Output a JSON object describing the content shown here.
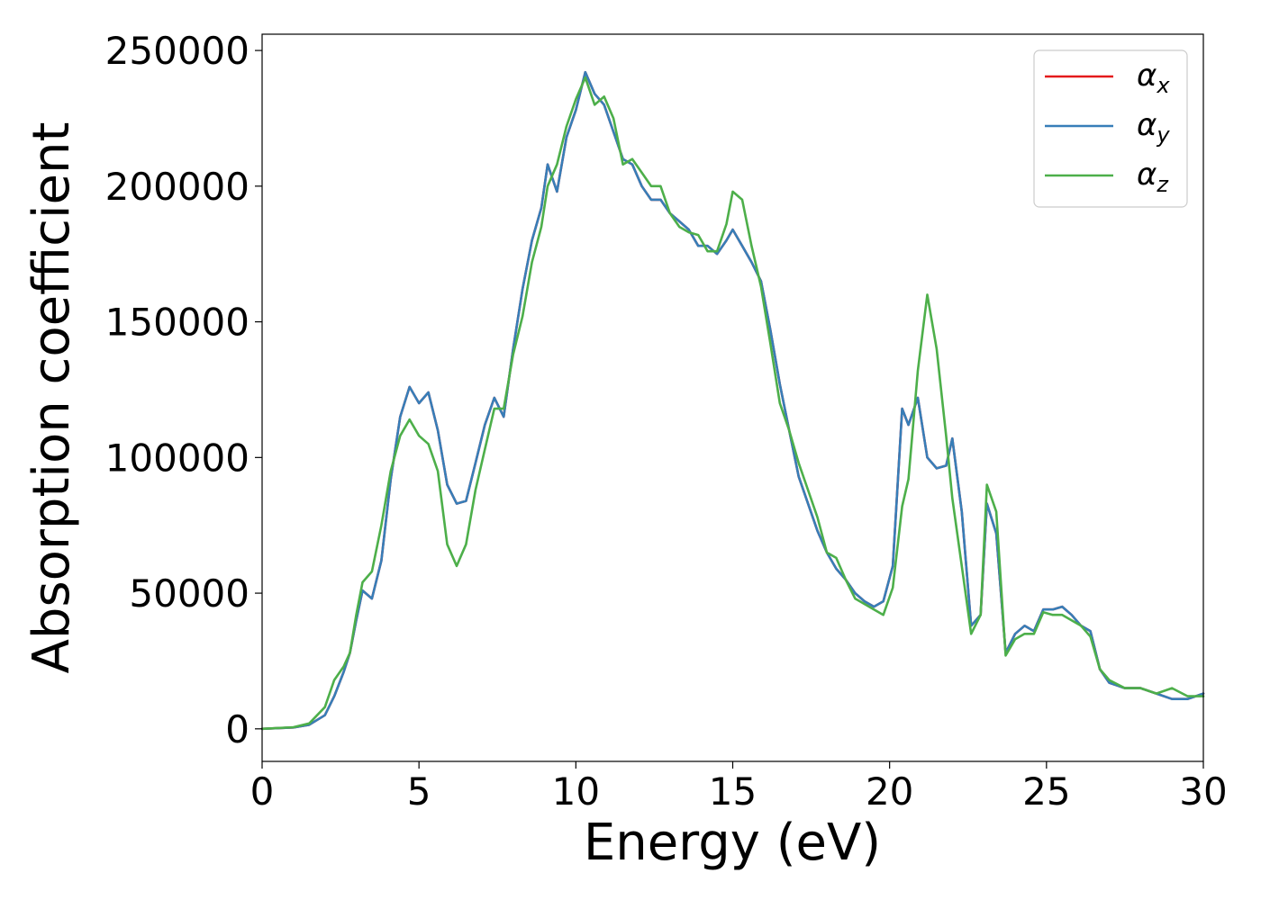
{
  "chart_data": {
    "type": "line",
    "xlabel": "Energy (eV)",
    "ylabel": "Absorption coefficient",
    "xlim": [
      0,
      30
    ],
    "ylim": [
      -12000,
      256000
    ],
    "grid": false,
    "legend_position": "top-right",
    "x_ticks": [
      "0",
      "5",
      "10",
      "15",
      "20",
      "25",
      "30"
    ],
    "y_ticks": [
      "0",
      "50000",
      "100000",
      "150000",
      "200000",
      "250000"
    ],
    "series": [
      {
        "name": "α_x",
        "legend_base": "α",
        "legend_sub": "x",
        "color": "#e41a1c",
        "x": [
          0,
          1,
          1.5,
          2,
          2.3,
          2.6,
          2.8,
          3.0,
          3.2,
          3.5,
          3.8,
          4.1,
          4.4,
          4.7,
          5.0,
          5.3,
          5.6,
          5.9,
          6.2,
          6.5,
          6.8,
          7.1,
          7.4,
          7.7,
          8.0,
          8.3,
          8.6,
          8.9,
          9.1,
          9.4,
          9.7,
          10.0,
          10.3,
          10.6,
          10.9,
          11.2,
          11.5,
          11.8,
          12.1,
          12.4,
          12.7,
          13.0,
          13.3,
          13.6,
          13.9,
          14.2,
          14.5,
          14.8,
          15.0,
          15.3,
          15.6,
          15.9,
          16.2,
          16.5,
          16.8,
          17.1,
          17.4,
          17.7,
          18.0,
          18.3,
          18.6,
          18.9,
          19.2,
          19.5,
          19.8,
          20.1,
          20.4,
          20.6,
          20.9,
          21.2,
          21.5,
          21.8,
          22.0,
          22.3,
          22.6,
          22.9,
          23.1,
          23.4,
          23.7,
          24.0,
          24.3,
          24.6,
          24.9,
          25.2,
          25.5,
          25.8,
          26.1,
          26.4,
          26.7,
          27.0,
          27.5,
          28.0,
          28.5,
          29.0,
          29.5,
          30.0
        ],
        "y": [
          0,
          500,
          1500,
          5000,
          12000,
          21000,
          28000,
          40000,
          51000,
          48000,
          62000,
          92000,
          115000,
          126000,
          120000,
          124000,
          110000,
          90000,
          83000,
          84000,
          98000,
          112000,
          122000,
          115000,
          140000,
          162000,
          180000,
          192000,
          208000,
          198000,
          218000,
          228000,
          242000,
          234000,
          230000,
          220000,
          210000,
          208000,
          200000,
          195000,
          195000,
          190000,
          187000,
          184000,
          178000,
          178000,
          175000,
          180000,
          184000,
          178000,
          172000,
          165000,
          147000,
          127000,
          110000,
          93000,
          83000,
          73000,
          65000,
          59000,
          55000,
          50000,
          47000,
          45000,
          47000,
          60000,
          118000,
          112000,
          122000,
          100000,
          96000,
          97000,
          107000,
          80000,
          38000,
          42000,
          83000,
          72000,
          28000,
          35000,
          38000,
          36000,
          44000,
          44000,
          45000,
          42000,
          38000,
          36000,
          22000,
          17000,
          15000,
          15000,
          13000,
          11000,
          11000,
          13000
        ]
      },
      {
        "name": "α_y",
        "legend_base": "α",
        "legend_sub": "y",
        "color": "#377eb8",
        "x": [
          0,
          1,
          1.5,
          2,
          2.3,
          2.6,
          2.8,
          3.0,
          3.2,
          3.5,
          3.8,
          4.1,
          4.4,
          4.7,
          5.0,
          5.3,
          5.6,
          5.9,
          6.2,
          6.5,
          6.8,
          7.1,
          7.4,
          7.7,
          8.0,
          8.3,
          8.6,
          8.9,
          9.1,
          9.4,
          9.7,
          10.0,
          10.3,
          10.6,
          10.9,
          11.2,
          11.5,
          11.8,
          12.1,
          12.4,
          12.7,
          13.0,
          13.3,
          13.6,
          13.9,
          14.2,
          14.5,
          14.8,
          15.0,
          15.3,
          15.6,
          15.9,
          16.2,
          16.5,
          16.8,
          17.1,
          17.4,
          17.7,
          18.0,
          18.3,
          18.6,
          18.9,
          19.2,
          19.5,
          19.8,
          20.1,
          20.4,
          20.6,
          20.9,
          21.2,
          21.5,
          21.8,
          22.0,
          22.3,
          22.6,
          22.9,
          23.1,
          23.4,
          23.7,
          24.0,
          24.3,
          24.6,
          24.9,
          25.2,
          25.5,
          25.8,
          26.1,
          26.4,
          26.7,
          27.0,
          27.5,
          28.0,
          28.5,
          29.0,
          29.5,
          30.0
        ],
        "y": [
          0,
          500,
          1500,
          5000,
          12000,
          21000,
          28000,
          40000,
          51000,
          48000,
          62000,
          92000,
          115000,
          126000,
          120000,
          124000,
          110000,
          90000,
          83000,
          84000,
          98000,
          112000,
          122000,
          115000,
          140000,
          162000,
          180000,
          192000,
          208000,
          198000,
          218000,
          228000,
          242000,
          234000,
          230000,
          220000,
          210000,
          208000,
          200000,
          195000,
          195000,
          190000,
          187000,
          184000,
          178000,
          178000,
          175000,
          180000,
          184000,
          178000,
          172000,
          165000,
          147000,
          127000,
          110000,
          93000,
          83000,
          73000,
          65000,
          59000,
          55000,
          50000,
          47000,
          45000,
          47000,
          60000,
          118000,
          112000,
          122000,
          100000,
          96000,
          97000,
          107000,
          80000,
          38000,
          42000,
          83000,
          72000,
          28000,
          35000,
          38000,
          36000,
          44000,
          44000,
          45000,
          42000,
          38000,
          36000,
          22000,
          17000,
          15000,
          15000,
          13000,
          11000,
          11000,
          13000
        ]
      },
      {
        "name": "α_z",
        "legend_base": "α",
        "legend_sub": "z",
        "color": "#4daf4a",
        "x": [
          0,
          1,
          1.5,
          2,
          2.3,
          2.6,
          2.8,
          3.0,
          3.2,
          3.5,
          3.8,
          4.1,
          4.4,
          4.7,
          5.0,
          5.3,
          5.6,
          5.9,
          6.2,
          6.5,
          6.8,
          7.1,
          7.4,
          7.7,
          8.0,
          8.3,
          8.6,
          8.9,
          9.1,
          9.4,
          9.7,
          10.0,
          10.3,
          10.6,
          10.9,
          11.2,
          11.5,
          11.8,
          12.1,
          12.4,
          12.7,
          13.0,
          13.3,
          13.6,
          13.9,
          14.2,
          14.5,
          14.8,
          15.0,
          15.3,
          15.6,
          15.9,
          16.2,
          16.5,
          16.8,
          17.1,
          17.4,
          17.7,
          18.0,
          18.3,
          18.6,
          18.9,
          19.2,
          19.5,
          19.8,
          20.1,
          20.4,
          20.6,
          20.9,
          21.2,
          21.5,
          21.8,
          22.0,
          22.3,
          22.6,
          22.9,
          23.1,
          23.4,
          23.7,
          24.0,
          24.3,
          24.6,
          24.9,
          25.2,
          25.5,
          25.8,
          26.1,
          26.4,
          26.7,
          27.0,
          27.5,
          28.0,
          28.5,
          29.0,
          29.5,
          30.0
        ],
        "y": [
          0,
          600,
          2000,
          8000,
          18000,
          23000,
          28000,
          42000,
          54000,
          58000,
          75000,
          95000,
          108000,
          114000,
          108000,
          105000,
          95000,
          68000,
          60000,
          68000,
          88000,
          103000,
          118000,
          118000,
          138000,
          152000,
          172000,
          185000,
          200000,
          208000,
          222000,
          232000,
          240000,
          230000,
          233000,
          225000,
          208000,
          210000,
          205000,
          200000,
          200000,
          190000,
          185000,
          183000,
          182000,
          176000,
          176000,
          186000,
          198000,
          195000,
          178000,
          163000,
          142000,
          120000,
          110000,
          98000,
          88000,
          78000,
          65000,
          63000,
          55000,
          48000,
          46000,
          44000,
          42000,
          52000,
          82000,
          92000,
          132000,
          160000,
          140000,
          108000,
          85000,
          60000,
          35000,
          42000,
          90000,
          80000,
          27000,
          33000,
          35000,
          35000,
          43000,
          42000,
          42000,
          40000,
          38000,
          34000,
          22000,
          18000,
          15000,
          15000,
          13000,
          15000,
          12000,
          12000
        ]
      }
    ]
  }
}
